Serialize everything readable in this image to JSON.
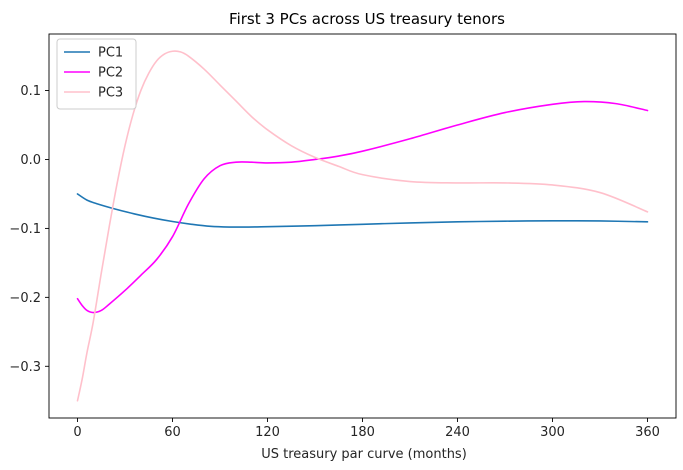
{
  "chart_data": {
    "type": "line",
    "title": "First 3 PCs across US treasury tenors",
    "xlabel": "US treasury par curve (months)",
    "ylabel": "",
    "xlim": [
      -18,
      378
    ],
    "ylim": [
      -0.375,
      0.182
    ],
    "xticks": [
      0,
      60,
      120,
      180,
      240,
      300,
      360
    ],
    "yticks": [
      -0.3,
      -0.2,
      -0.1,
      0.0,
      0.1
    ],
    "ytick_labels": [
      "−0.3",
      "−0.2",
      "−0.1",
      "0.0",
      "0.1"
    ],
    "grid": false,
    "legend_position": "top-left",
    "series": [
      {
        "name": "PC1",
        "color": "#1f77b4",
        "x": [
          0,
          6,
          12,
          24,
          36,
          48,
          60,
          72,
          84,
          96,
          108,
          120,
          150,
          180,
          210,
          240,
          270,
          300,
          330,
          360
        ],
        "y": [
          -0.05,
          -0.059,
          -0.064,
          -0.072,
          -0.079,
          -0.085,
          -0.09,
          -0.094,
          -0.097,
          -0.098,
          -0.098,
          -0.0975,
          -0.096,
          -0.094,
          -0.092,
          -0.0905,
          -0.0895,
          -0.089,
          -0.0892,
          -0.0905
        ]
      },
      {
        "name": "PC2",
        "color": "#ff00ff",
        "x": [
          0,
          3,
          6,
          10,
          15,
          20,
          30,
          40,
          50,
          60,
          70,
          80,
          90,
          100,
          110,
          120,
          135,
          150,
          165,
          180,
          210,
          240,
          270,
          300,
          320,
          340,
          360
        ],
        "y": [
          -0.202,
          -0.212,
          -0.219,
          -0.222,
          -0.219,
          -0.21,
          -0.19,
          -0.168,
          -0.145,
          -0.112,
          -0.065,
          -0.028,
          -0.009,
          -0.004,
          -0.004,
          -0.005,
          -0.004,
          0.0,
          0.005,
          0.012,
          0.03,
          0.05,
          0.068,
          0.08,
          0.084,
          0.081,
          0.071
        ]
      },
      {
        "name": "PC3",
        "color": "#ffc0cb",
        "x": [
          0,
          3,
          6,
          10,
          15,
          20,
          25,
          30,
          35,
          40,
          45,
          50,
          55,
          60,
          65,
          70,
          80,
          90,
          100,
          110,
          120,
          135,
          150,
          165,
          180,
          210,
          240,
          270,
          300,
          330,
          360
        ],
        "y": [
          -0.35,
          -0.318,
          -0.28,
          -0.235,
          -0.165,
          -0.098,
          -0.035,
          0.02,
          0.065,
          0.1,
          0.125,
          0.143,
          0.153,
          0.157,
          0.156,
          0.15,
          0.131,
          0.108,
          0.085,
          0.062,
          0.043,
          0.02,
          0.003,
          -0.01,
          -0.022,
          -0.032,
          -0.034,
          -0.034,
          -0.037,
          -0.048,
          -0.076
        ]
      }
    ]
  }
}
